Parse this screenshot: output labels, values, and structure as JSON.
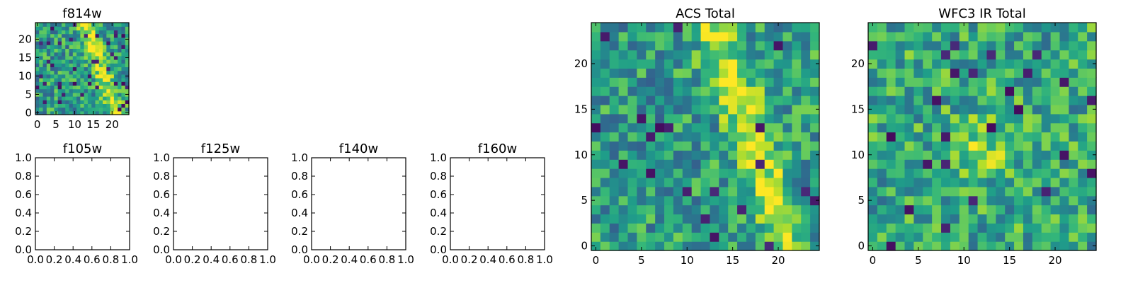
{
  "chart_data": [
    {
      "id": "f814w",
      "type": "heatmap",
      "title": "f814w",
      "grid_size": 25,
      "xlim": [
        0,
        25
      ],
      "ylim": [
        0,
        25
      ],
      "xticks": [
        0,
        5,
        10,
        15,
        20
      ],
      "yticks": [
        0,
        5,
        10,
        15,
        20
      ],
      "seed": 814,
      "pattern": "diagonal-band",
      "colormap": "viridis"
    },
    {
      "id": "f105w",
      "type": "heatmap",
      "title": "f105w",
      "empty": true,
      "xlim": [
        0,
        1
      ],
      "ylim": [
        0,
        1
      ],
      "xticks": [
        "0.0",
        "0.2",
        "0.4",
        "0.6",
        "0.8",
        "1.0"
      ],
      "yticks": [
        "0.0",
        "0.2",
        "0.4",
        "0.6",
        "0.8",
        "1.0"
      ]
    },
    {
      "id": "f125w",
      "type": "heatmap",
      "title": "f125w",
      "empty": true,
      "xlim": [
        0,
        1
      ],
      "ylim": [
        0,
        1
      ],
      "xticks": [
        "0.0",
        "0.2",
        "0.4",
        "0.6",
        "0.8",
        "1.0"
      ],
      "yticks": [
        "0.0",
        "0.2",
        "0.4",
        "0.6",
        "0.8",
        "1.0"
      ]
    },
    {
      "id": "f140w",
      "type": "heatmap",
      "title": "f140w",
      "empty": true,
      "xlim": [
        0,
        1
      ],
      "ylim": [
        0,
        1
      ],
      "xticks": [
        "0.0",
        "0.2",
        "0.4",
        "0.6",
        "0.8",
        "1.0"
      ],
      "yticks": [
        "0.0",
        "0.2",
        "0.4",
        "0.6",
        "0.8",
        "1.0"
      ]
    },
    {
      "id": "f160w",
      "type": "heatmap",
      "title": "f160w",
      "empty": true,
      "xlim": [
        0,
        1
      ],
      "ylim": [
        0,
        1
      ],
      "xticks": [
        "0.0",
        "0.2",
        "0.4",
        "0.6",
        "0.8",
        "1.0"
      ],
      "yticks": [
        "0.0",
        "0.2",
        "0.4",
        "0.6",
        "0.8",
        "1.0"
      ]
    },
    {
      "id": "acs_total",
      "type": "heatmap",
      "title": "ACS Total",
      "grid_size": 25,
      "xlim": [
        0,
        25
      ],
      "ylim": [
        0,
        25
      ],
      "xticks": [
        0,
        5,
        10,
        15,
        20
      ],
      "yticks": [
        0,
        5,
        10,
        15,
        20
      ],
      "seed": 4242,
      "pattern": "diagonal-band",
      "colormap": "viridis"
    },
    {
      "id": "wfc3_ir_total",
      "type": "heatmap",
      "title": "WFC3 IR Total",
      "grid_size": 25,
      "xlim": [
        0,
        25
      ],
      "ylim": [
        0,
        25
      ],
      "xticks": [
        0,
        5,
        10,
        15,
        20
      ],
      "yticks": [
        0,
        5,
        10,
        15,
        20
      ],
      "seed": 31337,
      "pattern": "central-blob",
      "colormap": "viridis"
    }
  ]
}
